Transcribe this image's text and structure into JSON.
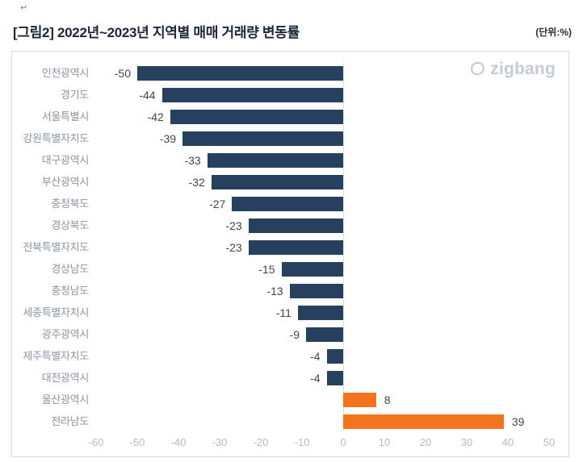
{
  "page": {
    "return_mark": "↵"
  },
  "header": {
    "title": "[그림2] 2022년~2023년 지역별 매매 거래량 변동률",
    "unit_label": "(단위:%)"
  },
  "brand": {
    "logo_text": "zigbang"
  },
  "chart_data": {
    "type": "bar",
    "orientation": "horizontal",
    "title": "[그림2] 2022년~2023년 지역별 매매 거래량 변동률",
    "unit": "%",
    "categories": [
      "인천광역시",
      "경기도",
      "서울특별시",
      "강원특별자치도",
      "대구광역시",
      "부산광역시",
      "충청북도",
      "경상북도",
      "전북특별자치도",
      "경상남도",
      "충청남도",
      "세종특별자치시",
      "광주광역시",
      "제주특별자치도",
      "대전광역시",
      "울산광역시",
      "전라남도"
    ],
    "values": [
      -50,
      -44,
      -42,
      -39,
      -33,
      -32,
      -27,
      -23,
      -23,
      -15,
      -13,
      -11,
      -9,
      -4,
      -4,
      8,
      39
    ],
    "xlim": [
      -60,
      50
    ],
    "x_ticks": [
      -60,
      -50,
      -40,
      -30,
      -20,
      -10,
      0,
      10,
      20,
      30,
      40,
      50
    ],
    "colors": {
      "negative_bar": "#28405f",
      "positive_bar": "#f4731d"
    },
    "value_labels": true,
    "grid": "zero-line-only",
    "legend": "none"
  }
}
